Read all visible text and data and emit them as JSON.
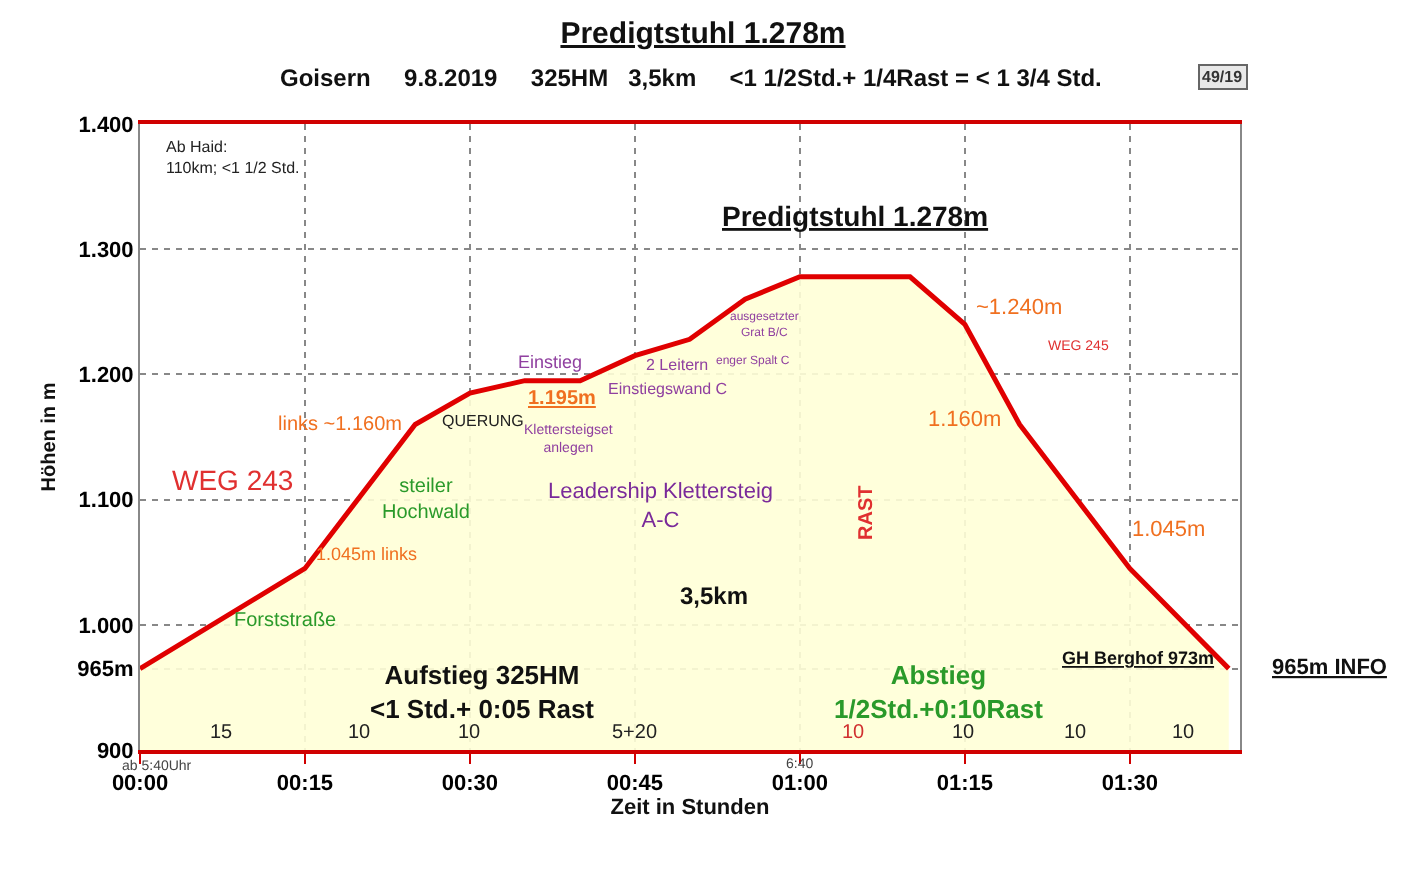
{
  "chart_data": {
    "type": "area",
    "title": "Predigtstuhl 1.278m",
    "subtitle": "Goisern     9.8.2019     325HM   3,5km     <1 1/2Std.+ 1/4Rast = < 1 3/4 Std.",
    "xlabel": "Zeit in Stunden",
    "ylabel": "Höhen in m",
    "x": [
      0,
      0.25,
      0.417,
      0.5,
      0.583,
      0.667,
      0.75,
      0.833,
      0.917,
      1.0,
      1.167,
      1.25,
      1.333,
      1.5,
      1.65
    ],
    "series": [
      {
        "color": "#e00000",
        "values": [
          965,
          1045,
          1160,
          1185,
          1195,
          1195,
          1215,
          1228,
          1260,
          1278,
          1278,
          1240,
          1160,
          1045,
          965
        ]
      }
    ],
    "xlim": [
      0,
      1.667
    ],
    "xticks": [
      {
        "value": 0,
        "label": "00:00"
      },
      {
        "value": 0.25,
        "label": "00:15"
      },
      {
        "value": 0.5,
        "label": "00:30"
      },
      {
        "value": 0.75,
        "label": "00:45"
      },
      {
        "value": 1.0,
        "label": "01:00"
      },
      {
        "value": 1.25,
        "label": "01:15"
      },
      {
        "value": 1.5,
        "label": "01:30"
      }
    ],
    "ylim": [
      900,
      1400
    ],
    "yticks": [
      {
        "value": 900,
        "label": "900"
      },
      {
        "value": 965,
        "label": "965m"
      },
      {
        "value": 1000,
        "label": "1.000"
      },
      {
        "value": 1100,
        "label": "1.100"
      },
      {
        "value": 1200,
        "label": "1.200"
      },
      {
        "value": 1300,
        "label": "1.300"
      },
      {
        "value": 1400,
        "label": "1.400"
      }
    ],
    "grid": true,
    "annotations": [
      "Ab Haid:\n110km; <1 1/2 Std.",
      "49/19",
      "965m INFO",
      "Predigtstuhl 1.278m",
      {
        "text": "links ~1.160m",
        "x": 0.417,
        "y": 1160
      },
      {
        "text": "1.045m links",
        "x": 0.25,
        "y": 1045
      },
      "WEG 243",
      "steiler\nHochwald",
      "Forststraße",
      "QUERUNG",
      "Einstieg",
      "1.195m",
      "Klettersteigset\nanlegen",
      "Einstiegswand C",
      "2 Leitern",
      "enger Spalt C",
      "ausgesetzter\nGrat B/C",
      {
        "text": "~1.240m",
        "x": 1.25,
        "y": 1240
      },
      "WEG 245",
      "1.160m",
      "1.045m",
      {
        "text": "GH Berghof 973m",
        "x": 1.65,
        "y": 973
      },
      "Leadership Klettersteig\nA-C",
      "3,5km",
      "RAST",
      "Aufstieg 325HM\n<1 Std.+ 0:05 Rast",
      "Abstieg\n1/2Std.+0:10Rast",
      "15",
      "10",
      "10",
      "5+20",
      "10",
      "10",
      "10",
      "10",
      "ab 5:40Uhr",
      "6:40"
    ]
  }
}
